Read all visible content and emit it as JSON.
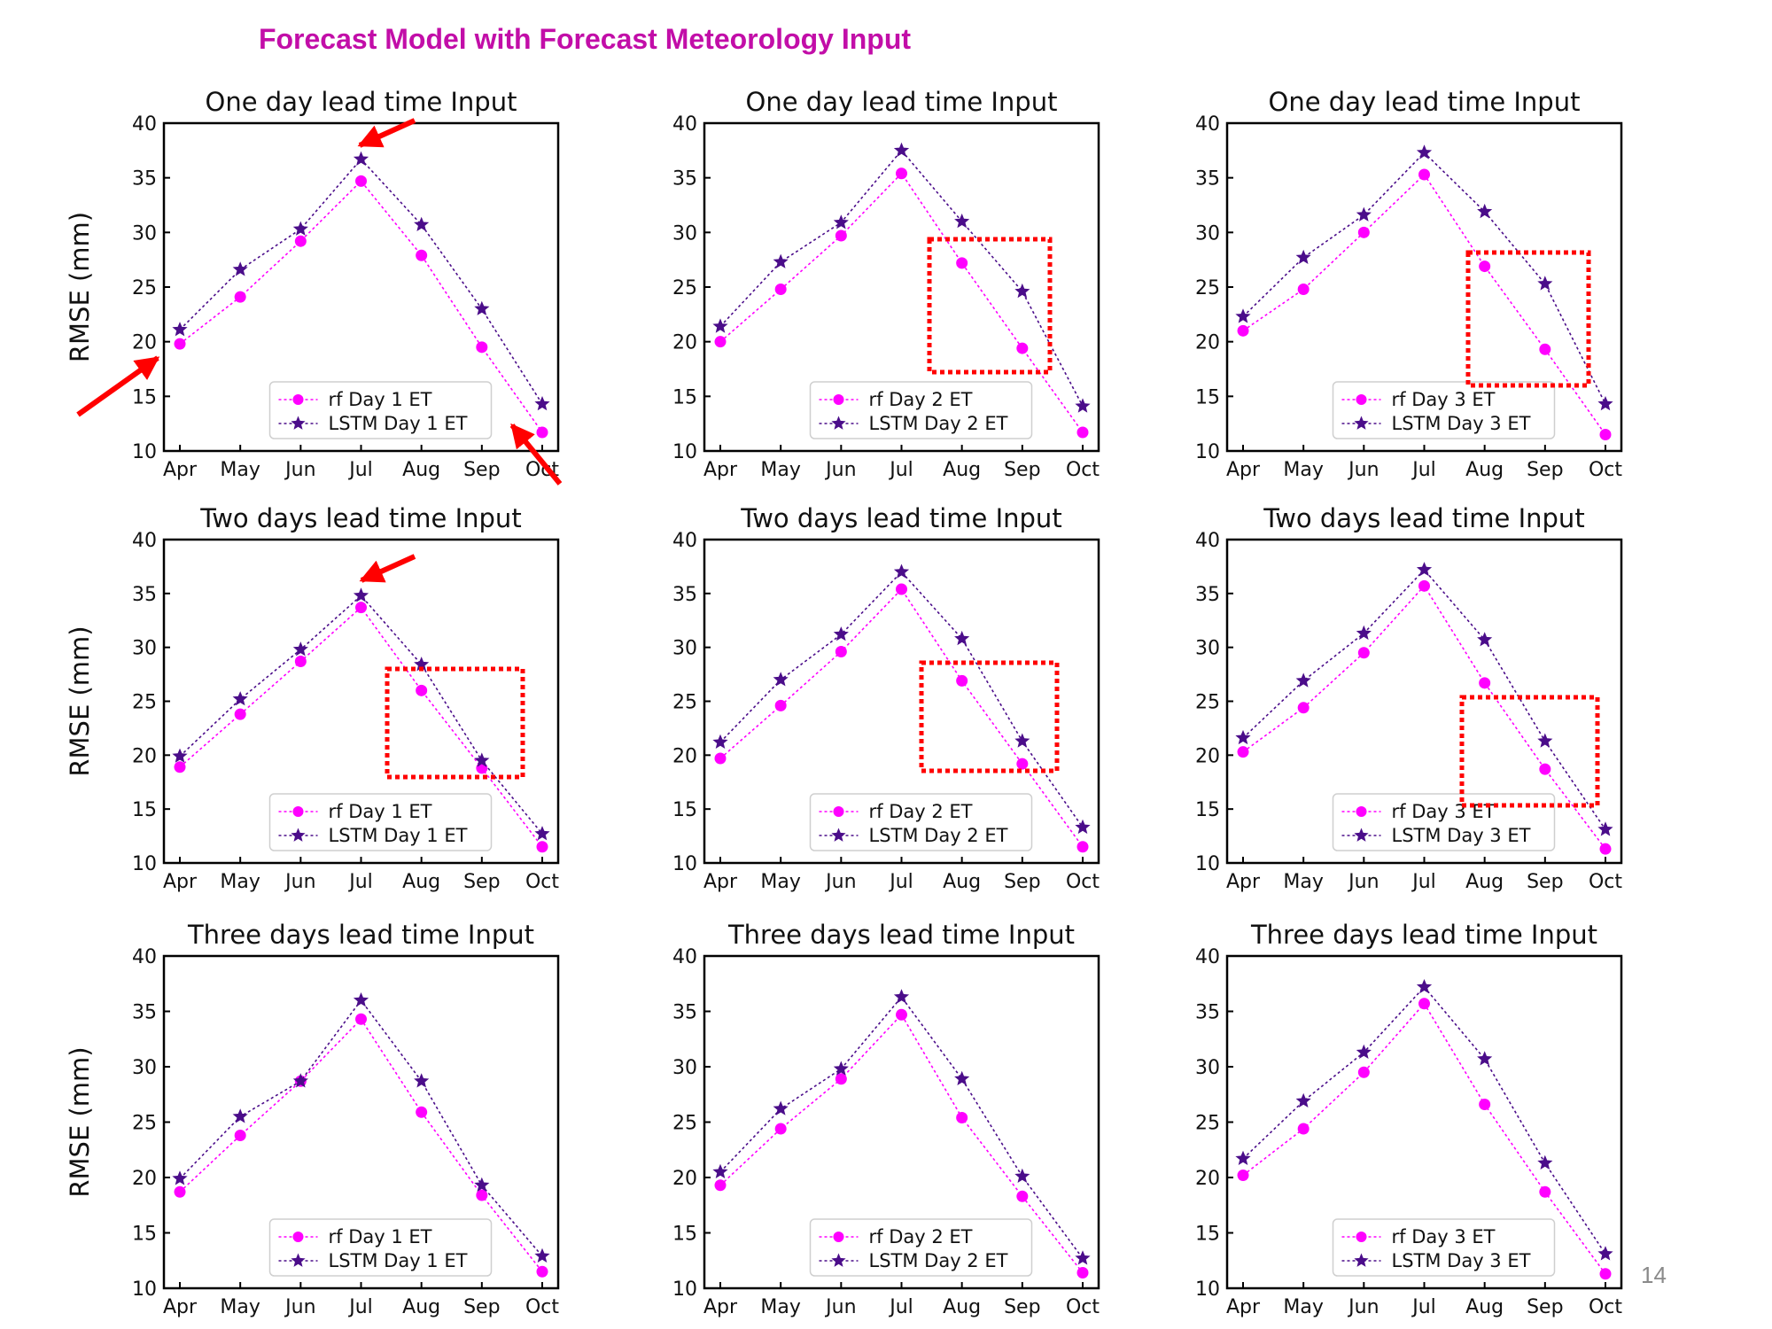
{
  "title": "Forecast Model with Forecast Meteorology Input",
  "page_number": "14",
  "colors": {
    "title": "#c20ea8",
    "rf": "#ff00ff",
    "lstm": "#4b0d8a",
    "highlight": "#ff0000"
  },
  "chart_data": [
    {
      "type": "line",
      "title": "One day lead time Input",
      "ylabel": "RMSE (mm)",
      "categories": [
        "Apr",
        "May",
        "Jun",
        "Jul",
        "Aug",
        "Sep",
        "Oct"
      ],
      "ylim": [
        10,
        40
      ],
      "yticks": [
        10,
        15,
        20,
        25,
        30,
        35,
        40
      ],
      "series": [
        {
          "name": "rf Day 1 ET",
          "values": [
            19.8,
            24.1,
            29.2,
            34.7,
            27.9,
            19.5,
            11.7
          ]
        },
        {
          "name": "LSTM Day 1 ET",
          "values": [
            21.1,
            26.6,
            30.3,
            36.7,
            30.7,
            23.0,
            14.3
          ]
        }
      ],
      "legend": "lower-center"
    },
    {
      "type": "line",
      "title": "One day lead time Input",
      "ylabel": "",
      "categories": [
        "Apr",
        "May",
        "Jun",
        "Jul",
        "Aug",
        "Sep",
        "Oct"
      ],
      "ylim": [
        10,
        40
      ],
      "yticks": [
        10,
        15,
        20,
        25,
        30,
        35,
        40
      ],
      "series": [
        {
          "name": "rf Day 2 ET",
          "values": [
            20.0,
            24.8,
            29.7,
            35.4,
            27.2,
            19.4,
            11.7
          ]
        },
        {
          "name": "LSTM Day 2 ET",
          "values": [
            21.4,
            27.3,
            30.9,
            37.5,
            31.0,
            24.6,
            14.1
          ]
        }
      ],
      "legend": "lower-center"
    },
    {
      "type": "line",
      "title": "One day lead time Input",
      "ylabel": "",
      "categories": [
        "Apr",
        "May",
        "Jun",
        "Jul",
        "Aug",
        "Sep",
        "Oct"
      ],
      "ylim": [
        10,
        40
      ],
      "yticks": [
        10,
        15,
        20,
        25,
        30,
        35,
        40
      ],
      "series": [
        {
          "name": "rf Day 3 ET",
          "values": [
            21.0,
            24.8,
            30.0,
            35.3,
            26.9,
            19.3,
            11.5
          ]
        },
        {
          "name": "LSTM Day 3 ET",
          "values": [
            22.3,
            27.7,
            31.6,
            37.3,
            31.9,
            25.3,
            14.3
          ]
        }
      ],
      "legend": "lower-center"
    },
    {
      "type": "line",
      "title": "Two days lead time Input",
      "ylabel": "RMSE (mm)",
      "categories": [
        "Apr",
        "May",
        "Jun",
        "Jul",
        "Aug",
        "Sep",
        "Oct"
      ],
      "ylim": [
        10,
        40
      ],
      "yticks": [
        10,
        15,
        20,
        25,
        30,
        35,
        40
      ],
      "series": [
        {
          "name": "rf Day 1 ET",
          "values": [
            18.9,
            23.8,
            28.7,
            33.7,
            26.0,
            18.8,
            11.5
          ]
        },
        {
          "name": "LSTM Day 1 ET",
          "values": [
            19.9,
            25.2,
            29.8,
            34.8,
            28.4,
            19.5,
            12.7
          ]
        }
      ],
      "legend": "lower-center"
    },
    {
      "type": "line",
      "title": "Two days lead time Input",
      "ylabel": "",
      "categories": [
        "Apr",
        "May",
        "Jun",
        "Jul",
        "Aug",
        "Sep",
        "Oct"
      ],
      "ylim": [
        10,
        40
      ],
      "yticks": [
        10,
        15,
        20,
        25,
        30,
        35,
        40
      ],
      "series": [
        {
          "name": "rf Day 2 ET",
          "values": [
            19.7,
            24.6,
            29.6,
            35.4,
            26.9,
            19.2,
            11.5
          ]
        },
        {
          "name": "LSTM Day 2 ET",
          "values": [
            21.2,
            27.0,
            31.2,
            37.0,
            30.8,
            21.3,
            13.3
          ]
        }
      ],
      "legend": "lower-center"
    },
    {
      "type": "line",
      "title": "Two days lead time Input",
      "ylabel": "",
      "categories": [
        "Apr",
        "May",
        "Jun",
        "Jul",
        "Aug",
        "Sep",
        "Oct"
      ],
      "ylim": [
        10,
        40
      ],
      "yticks": [
        10,
        15,
        20,
        25,
        30,
        35,
        40
      ],
      "series": [
        {
          "name": "rf Day 3 ET",
          "values": [
            20.3,
            24.4,
            29.5,
            35.7,
            26.7,
            18.7,
            11.3
          ]
        },
        {
          "name": "LSTM Day 3 ET",
          "values": [
            21.6,
            26.9,
            31.3,
            37.2,
            30.7,
            21.3,
            13.1
          ]
        }
      ],
      "legend": "lower-center"
    },
    {
      "type": "line",
      "title": "Three days lead time Input",
      "ylabel": "RMSE (mm)",
      "categories": [
        "Apr",
        "May",
        "Jun",
        "Jul",
        "Aug",
        "Sep",
        "Oct"
      ],
      "ylim": [
        10,
        40
      ],
      "yticks": [
        10,
        15,
        20,
        25,
        30,
        35,
        40
      ],
      "series": [
        {
          "name": "rf Day 1 ET",
          "values": [
            18.7,
            23.8,
            28.7,
            34.3,
            25.9,
            18.4,
            11.5
          ]
        },
        {
          "name": "LSTM Day 1 ET",
          "values": [
            19.9,
            25.5,
            28.7,
            36.0,
            28.7,
            19.3,
            12.9
          ]
        }
      ],
      "legend": "lower-center"
    },
    {
      "type": "line",
      "title": "Three days lead time Input",
      "ylabel": "",
      "categories": [
        "Apr",
        "May",
        "Jun",
        "Jul",
        "Aug",
        "Sep",
        "Oct"
      ],
      "ylim": [
        10,
        40
      ],
      "yticks": [
        10,
        15,
        20,
        25,
        30,
        35,
        40
      ],
      "series": [
        {
          "name": "rf Day 2 ET",
          "values": [
            19.3,
            24.4,
            28.9,
            34.7,
            25.4,
            18.3,
            11.4
          ]
        },
        {
          "name": "LSTM Day 2 ET",
          "values": [
            20.5,
            26.2,
            29.8,
            36.3,
            28.9,
            20.1,
            12.7
          ]
        }
      ],
      "legend": "lower-center"
    },
    {
      "type": "line",
      "title": "Three days lead time Input",
      "ylabel": "",
      "categories": [
        "Apr",
        "May",
        "Jun",
        "Jul",
        "Aug",
        "Sep",
        "Oct"
      ],
      "ylim": [
        10,
        40
      ],
      "yticks": [
        10,
        15,
        20,
        25,
        30,
        35,
        40
      ],
      "series": [
        {
          "name": "rf Day 3 ET",
          "values": [
            20.2,
            24.4,
            29.5,
            35.7,
            26.6,
            18.7,
            11.3
          ]
        },
        {
          "name": "LSTM Day 3 ET",
          "values": [
            21.7,
            26.9,
            31.3,
            37.2,
            30.7,
            21.3,
            13.1
          ]
        }
      ],
      "legend": "lower-center"
    }
  ]
}
